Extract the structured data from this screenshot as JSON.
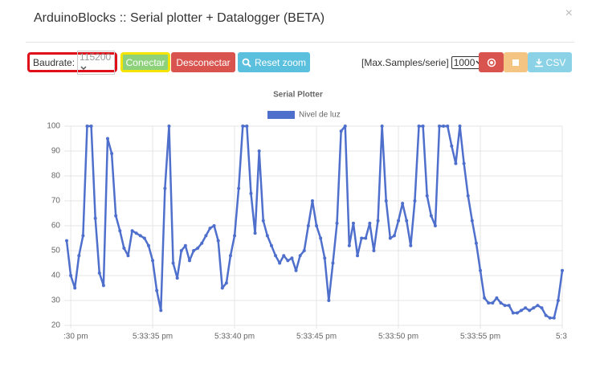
{
  "header": {
    "title": "ArduinoBlocks :: Serial plotter + Datalogger (BETA)",
    "close": "×"
  },
  "toolbar": {
    "baudrate_label": "Baudrate:",
    "baudrate": "115200",
    "connect": "Conectar",
    "disconnect": "Desconectar",
    "reset_zoom": "Reset zoom",
    "max_samples_label": "[Max.Samples/serie]",
    "max_samples": "1000",
    "csv": "CSV"
  },
  "chart_data": {
    "type": "line",
    "title": "Serial Plotter",
    "categories": [
      null,
      ":30 pm",
      null,
      null,
      null,
      null,
      null,
      null,
      null,
      null,
      null,
      null,
      null,
      null,
      null,
      null,
      null,
      null,
      null,
      null,
      null,
      "5:33:35 pm",
      null,
      null,
      null,
      null,
      null,
      null,
      null,
      null,
      null,
      null,
      null,
      null,
      null,
      null,
      null,
      null,
      null,
      null,
      null,
      "5:33:40 pm",
      null,
      null,
      null,
      null,
      null,
      null,
      null,
      null,
      null,
      null,
      null,
      null,
      null,
      null,
      null,
      null,
      null,
      null,
      null,
      "5:33:45 pm",
      null,
      null,
      null,
      null,
      null,
      null,
      null,
      null,
      null,
      null,
      null,
      null,
      null,
      null,
      null,
      null,
      null,
      null,
      null,
      "5:33:50 pm",
      null,
      null,
      null,
      null,
      null,
      null,
      null,
      null,
      null,
      null,
      null,
      null,
      null,
      null,
      null,
      null,
      null,
      null,
      null,
      "5:33:55 pm",
      null,
      null,
      null,
      null,
      null,
      null,
      null,
      null,
      null,
      null,
      null,
      null,
      null,
      null,
      null,
      null,
      null,
      null,
      null,
      "5:3"
    ],
    "series": [
      {
        "name": "Nivel de luz",
        "color": "#4f6fcc",
        "values": [
          54,
          40,
          35,
          48,
          56,
          100,
          100,
          63,
          41,
          36,
          95,
          89,
          64,
          58,
          51,
          48,
          58,
          57,
          56,
          55,
          52,
          46,
          34,
          26,
          75,
          100,
          45,
          39,
          50,
          52,
          46,
          50,
          51,
          53,
          56,
          59,
          60,
          54,
          35,
          37,
          48,
          56,
          75,
          100,
          100,
          73,
          57,
          90,
          62,
          56,
          52,
          48,
          45,
          48,
          46,
          47,
          42,
          48,
          50,
          60,
          70,
          60,
          55,
          47,
          30,
          45,
          61,
          98,
          100,
          52,
          61,
          48,
          55,
          55,
          61,
          50,
          62,
          100,
          70,
          55,
          56,
          62,
          69,
          62,
          52,
          70,
          100,
          100,
          72,
          64,
          60,
          100,
          100,
          100,
          92,
          85,
          100,
          85,
          72,
          62,
          53,
          42,
          31,
          29,
          29,
          31,
          29,
          28,
          28,
          25,
          25,
          26,
          27,
          26,
          27,
          28,
          27,
          24,
          23,
          23,
          30,
          42
        ]
      }
    ],
    "ylim": [
      20,
      100
    ],
    "yticks": [
      20,
      30,
      40,
      50,
      60,
      70,
      80,
      90,
      100
    ],
    "grid": true,
    "legend": "top"
  }
}
